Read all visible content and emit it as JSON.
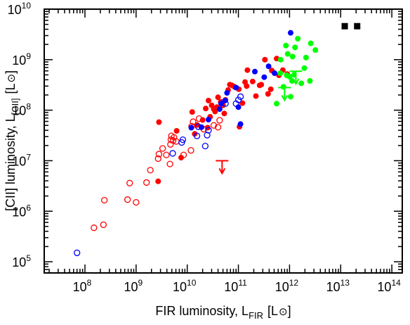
{
  "chart_data": {
    "type": "scatter",
    "xlabel": "FIR luminosity, L",
    "xlabel_sub": "FIR",
    "xlabel_unit": "[L",
    "xlabel_unit_end": "]",
    "ylabel": "[CII] luminosity, L",
    "ylabel_sub": "[CII]",
    "ylabel_unit": "[L",
    "ylabel_unit_end": "]",
    "x_scale": "log",
    "y_scale": "log",
    "xlim": [
      16000000.0,
      160000000000000.0
    ],
    "ylim": [
      60000.0,
      10000000000.0
    ],
    "x_ticks": [
      {
        "base": "10",
        "exp": "8",
        "value": 100000000.0
      },
      {
        "base": "10",
        "exp": "9",
        "value": 1000000000.0
      },
      {
        "base": "10",
        "exp": "10",
        "value": 10000000000.0
      },
      {
        "base": "10",
        "exp": "11",
        "value": 100000000000.0
      },
      {
        "base": "10",
        "exp": "12",
        "value": 1000000000000.0
      },
      {
        "base": "10",
        "exp": "13",
        "value": 10000000000000.0
      },
      {
        "base": "10",
        "exp": "14",
        "value": 100000000000000.0
      }
    ],
    "y_ticks": [
      {
        "base": "10",
        "exp": "5",
        "value": 100000.0
      },
      {
        "base": "10",
        "exp": "6",
        "value": 1000000.0
      },
      {
        "base": "10",
        "exp": "7",
        "value": 10000000.0
      },
      {
        "base": "10",
        "exp": "8",
        "value": 100000000.0
      },
      {
        "base": "10",
        "exp": "9",
        "value": 1000000000.0
      },
      {
        "base": "10",
        "exp": "10",
        "value": 10000000000.0
      }
    ],
    "grid": false,
    "legend": "none",
    "series": [
      {
        "color": "#ff0000",
        "marker": "open-circle",
        "points": [
          [
            150000000.0,
            470000.0
          ],
          [
            230000000.0,
            540000.0
          ],
          [
            240000000.0,
            1650000.0
          ],
          [
            680000000.0,
            1700000.0
          ],
          [
            1000000000.0,
            1500000.0
          ],
          [
            750000000.0,
            3600000.0
          ],
          [
            1600000000.0,
            3700000.0
          ],
          [
            1900000000.0,
            6500000.0
          ],
          [
            2700000000.0,
            11000000.0
          ],
          [
            2800000000.0,
            13500000.0
          ],
          [
            3300000000.0,
            17500000.0
          ],
          [
            3900000000.0,
            13000000.0
          ],
          [
            4600000000.0,
            8600000.0
          ],
          [
            4700000000.0,
            21000000.0
          ],
          [
            4800000000.0,
            26000000.0
          ],
          [
            4900000000.0,
            31000000.0
          ],
          [
            5300000000.0,
            25000000.0
          ],
          [
            5500000000.0,
            29000000.0
          ],
          [
            6100000000.0,
            24000000.0
          ],
          [
            8500000000.0,
            13000000.0
          ],
          [
            11800000000.0,
            16000000.0
          ],
          [
            12200000000.0,
            48000000.0
          ],
          [
            13000000000.0,
            59000000.0
          ],
          [
            17000000000.0,
            68000000.0
          ],
          [
            21000000000.0,
            42000000.0
          ],
          [
            33000000000.0,
            50000000.0
          ],
          [
            40000000000.0,
            46000000.0
          ],
          [
            43000000000.0,
            63000000.0
          ]
        ]
      },
      {
        "color": "#ff0000",
        "marker": "filled-circle",
        "points": [
          [
            2700000000.0,
            3900000.0
          ],
          [
            2800000000.0,
            58000000.0
          ],
          [
            6200000000.0,
            39000000.0
          ],
          [
            7600000000.0,
            11500000.0
          ],
          [
            12500000000.0,
            92000000.0
          ],
          [
            14000000000.0,
            34000000.0
          ],
          [
            15500000000.0,
            51000000.0
          ],
          [
            20000000000.0,
            64000000.0
          ],
          [
            23000000000.0,
            108000000.0
          ],
          [
            25000000000.0,
            45000000.0
          ],
          [
            26000000000.0,
            155000000.0
          ],
          [
            28000000000.0,
            74000000.0
          ],
          [
            30000000000.0,
            125000000.0
          ],
          [
            33000000000.0,
            105000000.0
          ],
          [
            35000000000.0,
            94000000.0
          ],
          [
            38000000000.0,
            115000000.0
          ],
          [
            40000000000.0,
            180000000.0
          ],
          [
            45000000000.0,
            145000000.0
          ],
          [
            47000000000.0,
            145000000.0
          ],
          [
            50000000000.0,
            125000000.0
          ],
          [
            53000000000.0,
            86000000.0
          ],
          [
            56000000000.0,
            160000000.0
          ],
          [
            63000000000.0,
            250000000.0
          ],
          [
            68000000000.0,
            320000000.0
          ],
          [
            75000000000.0,
            310000000.0
          ],
          [
            84000000000.0,
            290000000.0
          ],
          [
            102000000000.0,
            260000000.0
          ],
          [
            105000000000.0,
            47000000.0
          ],
          [
            120000000000.0,
            138000000.0
          ],
          [
            135000000000.0,
            360000000.0
          ],
          [
            145000000000.0,
            300000000.0
          ],
          [
            150000000000.0,
            620000000.0
          ],
          [
            190000000000.0,
            370000000.0
          ],
          [
            220000000000.0,
            190000000.0
          ],
          [
            260000000000.0,
            310000000.0
          ],
          [
            280000000000.0,
            320000000.0
          ],
          [
            330000000000.0,
            1000000000.0
          ],
          [
            380000000000.0,
            210000000.0
          ],
          [
            430000000000.0,
            260000000.0
          ],
          [
            450000000000.0,
            610000000.0
          ],
          [
            560000000000.0,
            1050000000.0
          ],
          [
            620000000000.0,
            490000000.0
          ],
          [
            740000000000.0,
            620000000.0
          ],
          [
            900000000000.0,
            520000000.0
          ]
        ]
      },
      {
        "color": "#0000ff",
        "marker": "open-circle",
        "points": [
          [
            70000000.0,
            150000.0
          ],
          [
            5200000000.0,
            14000000.0
          ],
          [
            7800000000.0,
            23000000.0
          ],
          [
            8200000000.0,
            26000000.0
          ],
          [
            15500000000.0,
            31000000.0
          ],
          [
            16500000000.0,
            47000000.0
          ],
          [
            22500000000.0,
            19500000.0
          ],
          [
            24500000000.0,
            32000000.0
          ],
          [
            26000000000.0,
            40000000.0
          ],
          [
            56000000000.0,
            135000000.0
          ],
          [
            90000000000.0,
            135000000.0
          ],
          [
            100000000000.0,
            160000000.0
          ],
          [
            110000000000.0,
            185000000.0
          ]
        ]
      },
      {
        "color": "#0000ff",
        "marker": "filled-circle",
        "points": [
          [
            12000000000.0,
            45000000.0
          ],
          [
            19000000000.0,
            46000000.0
          ],
          [
            26000000000.0,
            65000000.0
          ],
          [
            43000000000.0,
            105000000.0
          ],
          [
            46000000000.0,
            135000000.0
          ],
          [
            55000000000.0,
            155000000.0
          ],
          [
            60000000000.0,
            220000000.0
          ],
          [
            90000000000.0,
            280000000.0
          ],
          [
            100000000000.0,
            115000000.0
          ],
          [
            110000000000.0,
            53000000.0
          ],
          [
            210000000000.0,
            580000000.0
          ],
          [
            320000000000.0,
            450000000.0
          ],
          [
            390000000000.0,
            740000000.0
          ],
          [
            510000000000.0,
            540000000.0
          ],
          [
            1050000000000.0,
            3400000000.0
          ]
        ]
      },
      {
        "color": "#00ff00",
        "marker": "filled-circle",
        "points": [
          [
            560000000000.0,
            135000000.0
          ],
          [
            660000000000.0,
            540000000.0
          ],
          [
            670000000000.0,
            1000000000.0
          ],
          [
            760000000000.0,
            290000000.0
          ],
          [
            850000000000.0,
            1900000000.0
          ],
          [
            920000000000.0,
            1300000000.0
          ],
          [
            1050000000000.0,
            185000000.0
          ],
          [
            1120000000000.0,
            380000000.0
          ],
          [
            1150000000000.0,
            1150000000.0
          ],
          [
            1220000000000.0,
            500000000.0
          ],
          [
            1280000000000.0,
            1750000000.0
          ],
          [
            1450000000000.0,
            2600000000.0
          ],
          [
            1700000000000.0,
            340000000.0
          ],
          [
            1950000000000.0,
            680000000.0
          ],
          [
            2100000000000.0,
            1100000000.0
          ],
          [
            2500000000000.0,
            380000000.0
          ],
          [
            2600000000000.0,
            2100000000.0
          ],
          [
            3200000000000.0,
            1550000000.0
          ],
          [
            880000000000.0,
            490000000.0
          ],
          [
            1000000000000.0,
            460000000.0
          ]
        ]
      },
      {
        "color": "#000000",
        "marker": "filled-square",
        "points": [
          [
            12000000000000.0,
            4600000000.0
          ],
          [
            21000000000000.0,
            4600000000.0
          ]
        ]
      }
    ],
    "upper_limits": [
      {
        "color": "#ff0000",
        "x": 48000000000.0,
        "y": 10000000.0
      },
      {
        "color": "#00ff00",
        "x": 800000000000.0,
        "y": 280000000.0
      },
      {
        "color": "#00ff00",
        "x": 1330000000000.0,
        "y": 590000000.0
      }
    ]
  }
}
